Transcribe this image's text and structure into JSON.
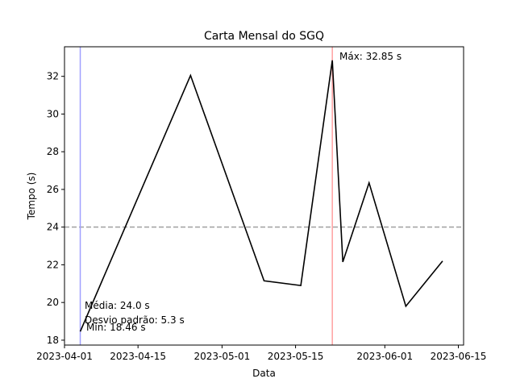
{
  "chart_data": {
    "type": "line",
    "title": "Carta Mensal do SGQ",
    "xlabel": "Data",
    "ylabel": "Tempo (s)",
    "x": [
      "2023-04-04",
      "2023-04-25",
      "2023-05-09",
      "2023-05-16",
      "2023-05-22",
      "2023-05-24",
      "2023-05-29",
      "2023-06-05",
      "2023-06-12"
    ],
    "series": [
      {
        "values": [
          18.46,
          32.05,
          21.15,
          20.9,
          32.85,
          22.15,
          26.35,
          19.8,
          22.2
        ],
        "color": "#000000"
      }
    ],
    "xlim": [
      "2023-04-01",
      "2023-06-16"
    ],
    "ylim": [
      17.74,
      33.57
    ],
    "x_ticks": [
      "2023-04-01",
      "2023-04-15",
      "2023-05-01",
      "2023-05-15",
      "2023-06-01",
      "2023-06-15"
    ],
    "y_ticks": [
      18,
      20,
      22,
      24,
      26,
      28,
      30,
      32
    ],
    "mean_line": {
      "value": 24.0,
      "color": "#a0a0a0",
      "style": "dashed"
    },
    "min_line": {
      "date": "2023-04-04",
      "color": "#a0a0ff"
    },
    "max_line": {
      "date": "2023-05-22",
      "color": "#ffa0a0"
    },
    "annotations": {
      "max": "Máx: 32.85 s",
      "min": "Mín: 18.46 s",
      "mean": "Média: 24.0 s",
      "std": "Desvio padrão: 5.3 s"
    },
    "annotation_colors": {
      "max": "#e06060",
      "min": "#7070e0"
    },
    "grid": false
  }
}
